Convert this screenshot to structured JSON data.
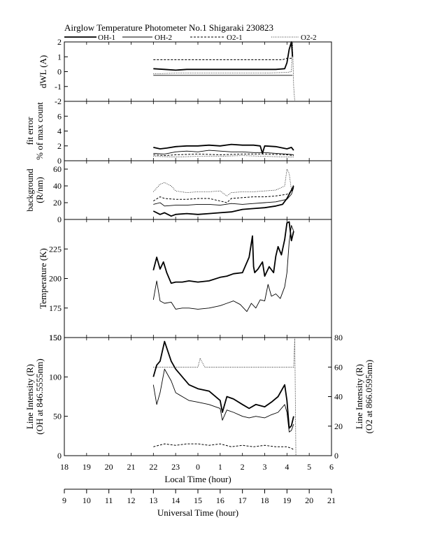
{
  "title": "Airglow Temperature Photometer No.1  Shigaraki  230823",
  "chart_data": {
    "type": "line",
    "title": "Airglow Temperature Photometer No.1  Shigaraki  230823",
    "legend": [
      {
        "name": "OH-1",
        "style": "thick-solid"
      },
      {
        "name": "OH-2",
        "style": "thin-solid"
      },
      {
        "name": "O2-1",
        "style": "dashed"
      },
      {
        "name": "O2-2",
        "style": "dotted"
      }
    ],
    "x_axes": {
      "local_time": {
        "label": "Local Time (hour)",
        "range": [
          18,
          6
        ],
        "ticks": [
          "18",
          "19",
          "20",
          "21",
          "22",
          "23",
          "0",
          "1",
          "2",
          "3",
          "4",
          "5",
          "6"
        ]
      },
      "universal_time": {
        "label": "Universal Time (hour)",
        "range": [
          9,
          21
        ],
        "ticks": [
          "9",
          "10",
          "11",
          "12",
          "13",
          "14",
          "15",
          "16",
          "17",
          "18",
          "19",
          "20",
          "21"
        ]
      }
    },
    "panels": [
      {
        "id": "dwl",
        "ylabel": "dWL (A)",
        "ylim": [
          -2,
          2
        ],
        "yticks": [
          "2",
          "1",
          "0",
          "-1",
          "-2"
        ],
        "series": [
          {
            "name": "OH-1",
            "x": [
              13.0,
              13.5,
              14.0,
              14.5,
              15.0,
              15.5,
              16.0,
              16.5,
              17.0,
              17.5,
              18.0,
              18.5,
              18.9,
              19.0,
              19.1,
              19.2,
              19.25
            ],
            "y": [
              0.2,
              0.15,
              0.1,
              0.15,
              0.15,
              0.15,
              0.15,
              0.15,
              0.15,
              0.15,
              0.15,
              0.15,
              0.2,
              0.6,
              1.5,
              2.0,
              1.0
            ]
          },
          {
            "name": "OH-2",
            "x": [
              13.0,
              13.5,
              14.0,
              14.5,
              15.0,
              15.5,
              16.0,
              17.0,
              18.0,
              19.0,
              19.2,
              19.25
            ],
            "y": [
              -0.25,
              -0.25,
              -0.25,
              -0.25,
              -0.25,
              -0.25,
              -0.25,
              -0.25,
              -0.25,
              -0.25,
              -0.25,
              -0.25
            ]
          },
          {
            "name": "O2-1",
            "x": [
              13.0,
              13.5,
              14.0,
              15.0,
              16.0,
              17.0,
              18.0,
              18.8,
              19.0,
              19.2,
              19.25
            ],
            "y": [
              0.8,
              0.8,
              0.8,
              0.8,
              0.8,
              0.8,
              0.8,
              0.8,
              0.9,
              0.9,
              0.9
            ]
          },
          {
            "name": "O2-2",
            "x": [
              13.0,
              14.0,
              15.0,
              16.0,
              17.0,
              18.0,
              19.0,
              19.2,
              19.25,
              19.3,
              19.35
            ],
            "y": [
              -0.15,
              -0.1,
              -0.1,
              -0.1,
              -0.1,
              -0.1,
              -0.05,
              0.0,
              2.0,
              -1.0,
              -2.0
            ]
          }
        ]
      },
      {
        "id": "fit_error",
        "ylabel": "fit error\n% of max count",
        "ylim": [
          0,
          8
        ],
        "yticks": [
          "6",
          "4",
          "2",
          "0"
        ],
        "series": [
          {
            "name": "OH-1",
            "x": [
              13.0,
              13.3,
              13.6,
              14.0,
              14.5,
              15.0,
              15.5,
              16.0,
              16.5,
              17.0,
              17.5,
              17.8,
              17.9,
              18.0,
              18.5,
              19.0,
              19.2,
              19.3
            ],
            "y": [
              1.8,
              1.6,
              1.7,
              1.9,
              2.0,
              2.0,
              2.1,
              2.0,
              2.2,
              2.1,
              2.1,
              2.0,
              1.0,
              2.0,
              1.9,
              1.6,
              1.8,
              1.4
            ]
          },
          {
            "name": "OH-2",
            "x": [
              13.0,
              13.5,
              14.0,
              14.5,
              15.0,
              15.5,
              16.0,
              16.5,
              17.0,
              17.5,
              18.0,
              18.5,
              19.0,
              19.3
            ],
            "y": [
              1.0,
              0.9,
              1.2,
              1.3,
              1.2,
              1.4,
              1.3,
              1.2,
              1.2,
              1.1,
              1.1,
              1.0,
              0.9,
              0.8
            ]
          },
          {
            "name": "O2-1",
            "x": [
              13.0,
              13.5,
              14.0,
              15.0,
              16.0,
              17.0,
              18.0,
              19.0,
              19.3
            ],
            "y": [
              0.8,
              0.7,
              0.8,
              0.9,
              0.8,
              0.9,
              0.9,
              0.8,
              0.7
            ]
          },
          {
            "name": "O2-2",
            "x": [
              13.0,
              14.0,
              15.0,
              16.0,
              17.0,
              18.0,
              19.0,
              19.3
            ],
            "y": [
              0.6,
              0.5,
              0.6,
              0.6,
              0.7,
              0.6,
              0.5,
              0.5
            ]
          }
        ]
      },
      {
        "id": "background",
        "ylabel": "background\n(R/nm)",
        "ylim": [
          0,
          70
        ],
        "yticks": [
          "60",
          "40",
          "20",
          "0"
        ],
        "series": [
          {
            "name": "OH-1",
            "x": [
              13.0,
              13.3,
              13.5,
              13.8,
              14.0,
              14.5,
              15.0,
              15.5,
              16.0,
              16.5,
              17.0,
              17.5,
              18.0,
              18.5,
              18.8,
              19.0,
              19.2,
              19.3
            ],
            "y": [
              10,
              6,
              8,
              4,
              6,
              7,
              6,
              7,
              8,
              9,
              12,
              13,
              14,
              16,
              18,
              25,
              35,
              40
            ]
          },
          {
            "name": "OH-2",
            "x": [
              13.0,
              13.3,
              13.5,
              14.0,
              14.5,
              15.0,
              15.5,
              16.0,
              16.5,
              17.0,
              17.5,
              18.0,
              18.5,
              19.0,
              19.2,
              19.3
            ],
            "y": [
              18,
              20,
              16,
              17,
              17,
              18,
              18,
              17,
              19,
              18,
              19,
              20,
              21,
              24,
              30,
              38
            ]
          },
          {
            "name": "O2-1",
            "x": [
              13.0,
              13.3,
              13.5,
              14.0,
              14.5,
              15.0,
              15.5,
              16.0,
              16.3,
              16.5,
              17.0,
              17.5,
              18.0,
              18.5,
              19.0,
              19.2,
              19.3
            ],
            "y": [
              22,
              27,
              25,
              24,
              24,
              25,
              25,
              22,
              20,
              25,
              26,
              27,
              27,
              28,
              30,
              33,
              38
            ]
          },
          {
            "name": "O2-2",
            "x": [
              13.0,
              13.3,
              13.5,
              13.8,
              14.0,
              14.5,
              15.0,
              15.5,
              16.0,
              16.3,
              16.5,
              17.0,
              17.5,
              18.0,
              18.5,
              18.9,
              19.0,
              19.1,
              19.2,
              19.3
            ],
            "y": [
              33,
              42,
              44,
              40,
              34,
              32,
              33,
              33,
              34,
              28,
              32,
              33,
              33,
              34,
              35,
              40,
              60,
              55,
              35,
              42
            ]
          }
        ]
      },
      {
        "id": "temperature",
        "ylabel": "Temperature (K)",
        "ylim": [
          150,
          250
        ],
        "yticks": [
          "225",
          "200",
          "175",
          "150"
        ],
        "series": [
          {
            "name": "OH-1",
            "x": [
              13.0,
              13.15,
              13.3,
              13.45,
              13.6,
              13.8,
              14.0,
              14.3,
              14.6,
              15.0,
              15.5,
              16.0,
              16.3,
              16.6,
              17.0,
              17.3,
              17.45,
              17.5,
              17.55,
              17.7,
              17.9,
              18.0,
              18.2,
              18.4,
              18.5,
              18.6,
              18.75,
              18.9,
              19.0,
              19.1,
              19.2,
              19.3
            ],
            "y": [
              207,
              218,
              208,
              214,
              205,
              196,
              197,
              197,
              198,
              197,
              198,
              201,
              202,
              204,
              205,
              218,
              236,
              210,
              205,
              208,
              214,
              202,
              210,
              205,
              219,
              227,
              220,
              233,
              247,
              248,
              232,
              240
            ]
          },
          {
            "name": "OH-2",
            "x": [
              13.0,
              13.15,
              13.3,
              13.5,
              13.8,
              14.0,
              14.3,
              14.6,
              15.0,
              15.5,
              16.0,
              16.3,
              16.6,
              16.9,
              17.2,
              17.4,
              17.6,
              17.8,
              18.0,
              18.15,
              18.3,
              18.5,
              18.7,
              18.9,
              19.0,
              19.1,
              19.2,
              19.3
            ],
            "y": [
              182,
              198,
              181,
              179,
              180,
              174,
              175,
              175,
              174,
              175,
              177,
              179,
              181,
              178,
              172,
              179,
              175,
              182,
              181,
              195,
              185,
              187,
              183,
              193,
              205,
              231,
              245,
              240
            ]
          }
        ]
      },
      {
        "id": "line_intensity",
        "ylabel": "Line Intensity (R)\n(OH at 846.5555nm)",
        "ylim": [
          0,
          150
        ],
        "yticks": [
          "150",
          "100",
          "50",
          "0"
        ],
        "ylabel_right": "Line Intensity (R)\n(O2 at 866.0595nm)",
        "ylim_right": [
          0,
          80
        ],
        "yticks_right": [
          "80",
          "60",
          "40",
          "20",
          "0"
        ],
        "series": [
          {
            "name": "OH-1",
            "axis": "left",
            "x": [
              13.0,
              13.15,
              13.3,
              13.5,
              13.8,
              14.0,
              14.3,
              14.6,
              15.0,
              15.5,
              16.0,
              16.1,
              16.3,
              16.6,
              17.0,
              17.3,
              17.6,
              18.0,
              18.3,
              18.6,
              18.9,
              19.0,
              19.1,
              19.2,
              19.3
            ],
            "y": [
              100,
              115,
              120,
              145,
              120,
              110,
              100,
              90,
              85,
              82,
              70,
              55,
              75,
              72,
              65,
              60,
              65,
              62,
              68,
              75,
              90,
              70,
              35,
              38,
              50
            ]
          },
          {
            "name": "OH-2",
            "axis": "left",
            "x": [
              13.0,
              13.15,
              13.3,
              13.5,
              13.8,
              14.0,
              14.3,
              14.6,
              15.0,
              15.5,
              16.0,
              16.1,
              16.3,
              16.6,
              17.0,
              17.3,
              17.6,
              18.0,
              18.3,
              18.6,
              18.9,
              19.0,
              19.1,
              19.2,
              19.3
            ],
            "y": [
              90,
              65,
              80,
              110,
              95,
              80,
              75,
              70,
              68,
              65,
              60,
              45,
              58,
              55,
              50,
              48,
              50,
              48,
              52,
              55,
              65,
              55,
              30,
              32,
              40
            ]
          },
          {
            "name": "O2-1",
            "axis": "right",
            "x": [
              13.0,
              13.5,
              14.0,
              14.5,
              15.0,
              15.5,
              16.0,
              16.5,
              17.0,
              17.5,
              18.0,
              18.5,
              19.0,
              19.2,
              19.3
            ],
            "y": [
              6,
              8,
              7,
              8,
              8,
              7,
              8,
              6,
              7,
              6,
              7,
              6,
              6,
              5,
              4
            ]
          },
          {
            "name": "O2-2",
            "axis": "right",
            "x": [
              13.0,
              14.0,
              15.0,
              15.1,
              15.2,
              15.3,
              16.0,
              17.0,
              18.0,
              19.0,
              19.3,
              19.35,
              19.4
            ],
            "y": [
              60,
              60,
              60,
              66,
              63,
              60,
              60,
              60,
              60,
              60,
              60,
              120,
              0
            ]
          }
        ]
      }
    ]
  }
}
